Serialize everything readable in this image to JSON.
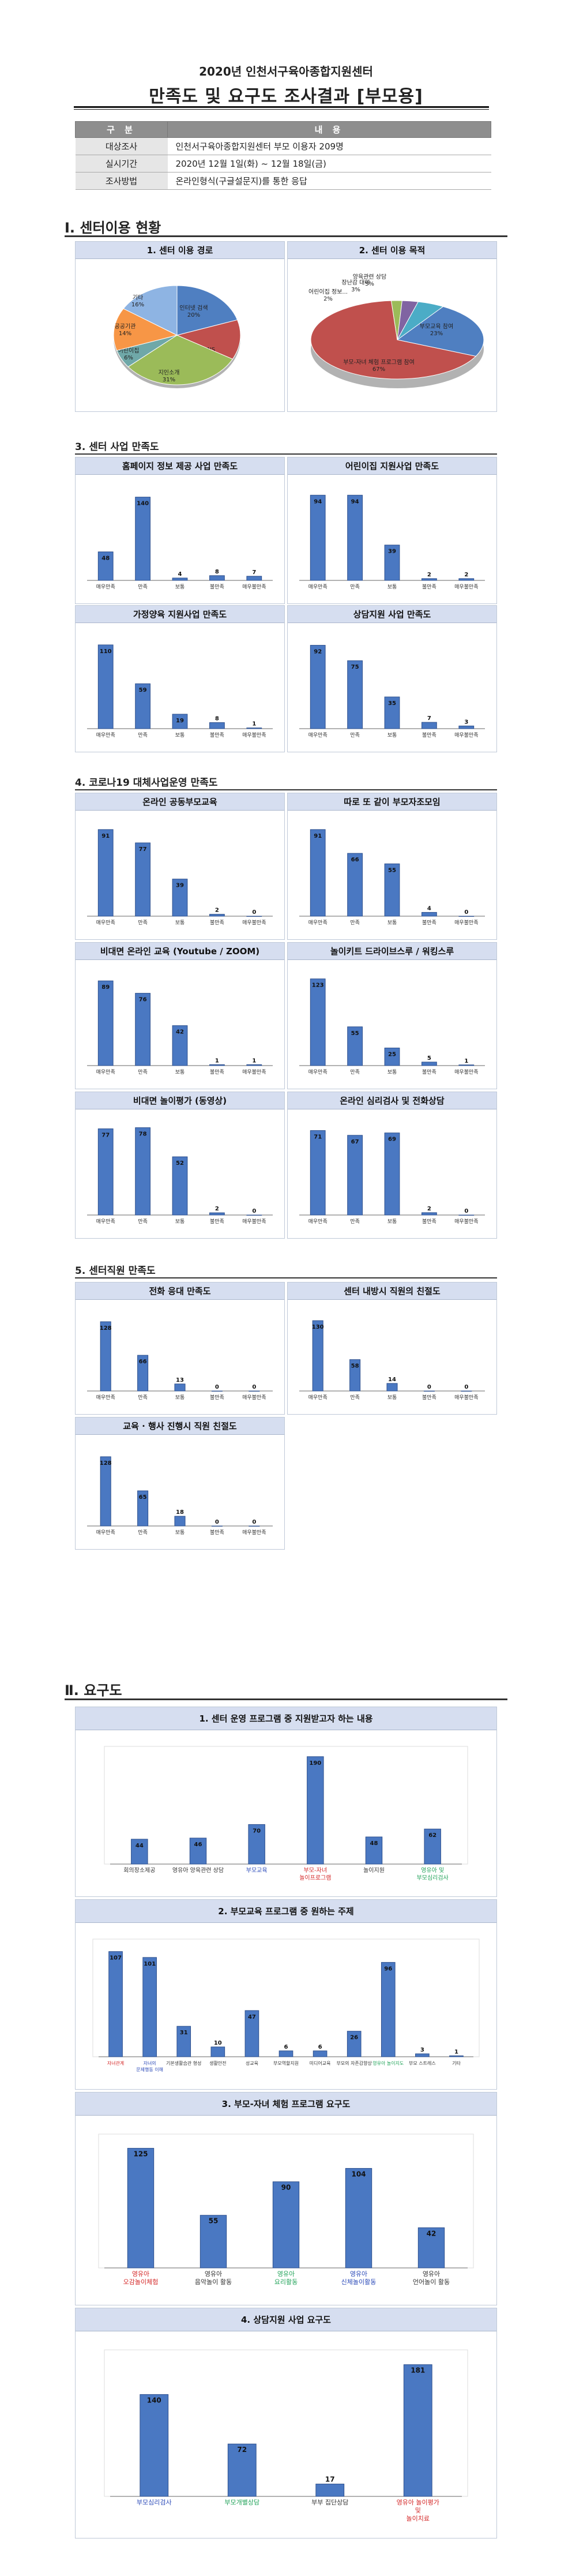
{
  "header": {
    "subtitle": "2020년 인천서구육아종합지원센터",
    "title": "만족도 및 요구도 조사결과 [부모용]"
  },
  "info_table": {
    "headers": [
      "구 분",
      "내 용"
    ],
    "rows": [
      {
        "key": "대상조사",
        "value": "인천서구육아종합지원센터 부모 이용자 209명"
      },
      {
        "key": "실시기간",
        "value": "2020년 12월 1일(화) ~ 12월 18일(금)"
      },
      {
        "key": "조사방법",
        "value": "온라인형식(구글설문지)를 통한 응답"
      }
    ]
  },
  "section1": {
    "title": "Ⅰ. 센터이용 현황"
  },
  "sub3": {
    "title": "3. 센터 사업 만족도"
  },
  "sub4": {
    "title": "4. 코로나19 대체사업운영 만족도"
  },
  "sub5": {
    "title": "5. 센터직원 만족도"
  },
  "section2": {
    "title": "Ⅱ. 요구도"
  },
  "sat_categories": [
    "매우만족",
    "만족",
    "보통",
    "불만족",
    "매우불만족"
  ],
  "colors": {
    "bar": "#4a78c2",
    "bar_dark": "#2d4f8c",
    "title_bg": "#d6def0",
    "green": "#22a35a",
    "red": "#d42828",
    "blue": "#2a49b8"
  },
  "chart_data": [
    {
      "id": "pie1",
      "type": "pie",
      "title": "1. 센터 이용 경로",
      "slices": [
        {
          "label": "인터넷 검색",
          "value": 20,
          "text": "인터넷 검색\n20%",
          "color": "#4f7fc1"
        },
        {
          "label": "SNS",
          "value": 13,
          "text": "SNS\n13%",
          "color": "#c0504d"
        },
        {
          "label": "지인소개",
          "value": 31,
          "text": "지인소개\n31%",
          "color": "#9bbb59"
        },
        {
          "label": "어린이집",
          "value": 6,
          "text": "어린이집\n6%",
          "color": "#6fa8a8"
        },
        {
          "label": "공공기관",
          "value": 14,
          "text": "공공기관\n14%",
          "color": "#f79646"
        },
        {
          "label": "기타",
          "value": 16,
          "text": "기타\n16%",
          "color": "#8eb4e3"
        }
      ]
    },
    {
      "id": "pie2",
      "type": "pie",
      "title": "2. 센터 이용 목적",
      "slices": [
        {
          "label": "부모교육 참여",
          "value": 23,
          "text": "부모교육 참여\n23%",
          "color": "#4f7fc1"
        },
        {
          "label": "부모-자녀 체험 프로그램 참여",
          "value": 67,
          "text": "부모-자녀 체험 프로그램 참여\n67%",
          "color": "#c0504d"
        },
        {
          "label": "어린이집 정보",
          "value": 2,
          "text": "어린이집 정보...\n2%",
          "color": "#9bbb59"
        },
        {
          "label": "장난감 대여",
          "value": 3,
          "text": "장난감 대여\n3%",
          "color": "#8064a2"
        },
        {
          "label": "양육관련 상담",
          "value": 5,
          "text": "양육관련 상담\n5%",
          "color": "#4bacc6"
        }
      ]
    },
    {
      "id": "b1",
      "type": "bar",
      "title": "홈페이지 정보 제공 사업 만족도",
      "values": [
        48,
        140,
        4,
        8,
        7
      ]
    },
    {
      "id": "b2",
      "type": "bar",
      "title": "어린이집 지원사업 만족도",
      "values": [
        94,
        94,
        39,
        2,
        2
      ]
    },
    {
      "id": "b3",
      "type": "bar",
      "title": "가정양육 지원사업 만족도",
      "values": [
        110,
        59,
        19,
        8,
        1
      ]
    },
    {
      "id": "b4",
      "type": "bar",
      "title": "상담지원 사업 만족도",
      "values": [
        92,
        75,
        35,
        7,
        3
      ]
    },
    {
      "id": "b5",
      "type": "bar",
      "title": "온라인 공동부모교육",
      "values": [
        91,
        77,
        39,
        2,
        0
      ]
    },
    {
      "id": "b6",
      "type": "bar",
      "title": "따로 또 같이 부모자조모임",
      "values": [
        91,
        66,
        55,
        4,
        0
      ]
    },
    {
      "id": "b7",
      "type": "bar",
      "title": "비대면 온라인 교육 (Youtube / ZOOM)",
      "values": [
        89,
        76,
        42,
        1,
        1
      ]
    },
    {
      "id": "b8",
      "type": "bar",
      "title": "놀이키트 드라이브스루 / 워킹스루",
      "values": [
        123,
        55,
        25,
        5,
        1
      ]
    },
    {
      "id": "b9",
      "type": "bar",
      "title": "비대면 놀이평가 (동영상)",
      "values": [
        77,
        78,
        52,
        2,
        0
      ]
    },
    {
      "id": "b10",
      "type": "bar",
      "title": "온라인 심리검사 및 전화상담",
      "values": [
        71,
        67,
        69,
        2,
        0
      ]
    },
    {
      "id": "b11",
      "type": "bar",
      "title": "전화 응대 만족도",
      "values": [
        128,
        66,
        13,
        0,
        0
      ]
    },
    {
      "id": "b12",
      "type": "bar",
      "title": "센터 내방시 직원의 친절도",
      "values": [
        130,
        58,
        14,
        0,
        0
      ]
    },
    {
      "id": "b13",
      "type": "bar",
      "title": "교육 · 행사 진행시 직원 친절도",
      "values": [
        128,
        65,
        18,
        0,
        0
      ]
    },
    {
      "id": "n1",
      "type": "bar",
      "title": "1. 센터 운영 프로그램 중 지원받고자 하는 내용",
      "categories": [
        {
          "label": "회의장소제공",
          "color": ""
        },
        {
          "label": "영유아 양육관련 상담",
          "color": ""
        },
        {
          "label": "부모교육",
          "color": "blue"
        },
        {
          "label": "부모-자녀\n놀이프로그램",
          "color": "red"
        },
        {
          "label": "놀이지원",
          "color": ""
        },
        {
          "label": "영유아 및\n부모심리검사",
          "color": "green"
        }
      ],
      "values": [
        44,
        46,
        70,
        190,
        48,
        62
      ]
    },
    {
      "id": "n2",
      "type": "bar",
      "title": "2. 부모교육 프로그램 중 원하는 주제",
      "categories": [
        {
          "label": "자녀관계",
          "color": "red"
        },
        {
          "label": "자녀의\n문제행동 이해",
          "color": "blue"
        },
        {
          "label": "기본생활습관 형성",
          "color": ""
        },
        {
          "label": "생활안전",
          "color": ""
        },
        {
          "label": "성교육",
          "color": ""
        },
        {
          "label": "부모역할지원",
          "color": ""
        },
        {
          "label": "미디어교육",
          "color": ""
        },
        {
          "label": "부모의 자존감향상",
          "color": ""
        },
        {
          "label": "영유아 놀이지도",
          "color": "green"
        },
        {
          "label": "부모 스트레스",
          "color": ""
        },
        {
          "label": "기타",
          "color": ""
        }
      ],
      "values": [
        107,
        101,
        31,
        10,
        47,
        6,
        6,
        26,
        96,
        3,
        1
      ]
    },
    {
      "id": "n3",
      "type": "bar",
      "title": "3. 부모-자녀 체험 프로그램 요구도",
      "categories": [
        {
          "label": "영유아\n오감놀이체험",
          "color": "red"
        },
        {
          "label": "영유아\n음악놀이 활동",
          "color": ""
        },
        {
          "label": "영유아\n요리활동",
          "color": "green"
        },
        {
          "label": "영유아\n신체놀이활동",
          "color": "blue"
        },
        {
          "label": "영유아\n언어놀이 활동",
          "color": ""
        }
      ],
      "values": [
        125,
        55,
        90,
        104,
        42
      ]
    },
    {
      "id": "n4",
      "type": "bar",
      "title": "4. 상담지원 사업 요구도",
      "categories": [
        {
          "label": "부모심리검사",
          "color": "blue"
        },
        {
          "label": "부모개별상담",
          "color": "green"
        },
        {
          "label": "부부 집단상담",
          "color": ""
        },
        {
          "label": "영유아 놀이평가\n및\n놀이치료",
          "color": "red"
        }
      ],
      "values": [
        140,
        72,
        17,
        181
      ]
    }
  ]
}
